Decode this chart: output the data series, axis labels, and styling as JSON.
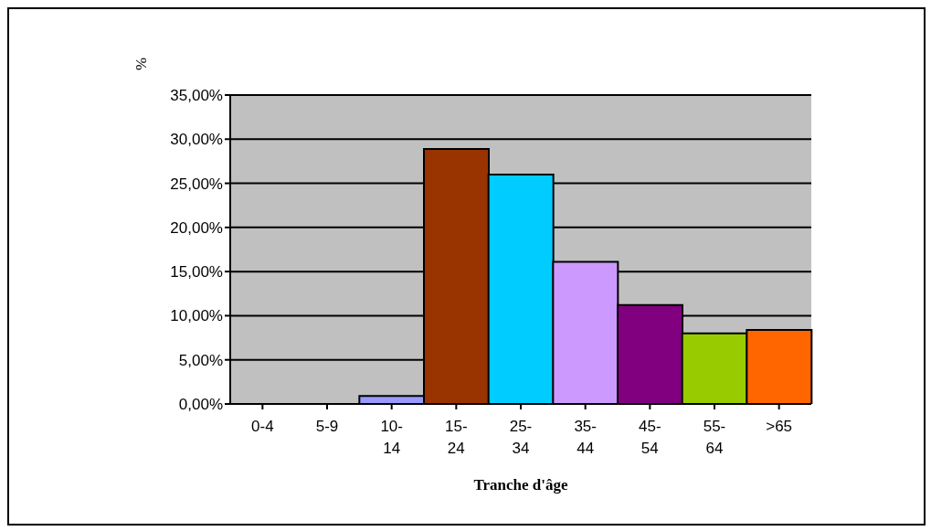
{
  "chart_data": {
    "type": "bar",
    "xlabel": "Tranche d'âge",
    "ylabel": "%",
    "categories": [
      "0-4",
      "5-9",
      "10-14",
      "15-24",
      "25-34",
      "35-44",
      "45-54",
      "55-64",
      ">65"
    ],
    "values": [
      null,
      null,
      0.9,
      28.9,
      26.0,
      16.1,
      11.2,
      8.0,
      8.4
    ],
    "colors": [
      "#9999ff",
      "#9999ff",
      "#9999ff",
      "#993300",
      "#00ccff",
      "#cc99ff",
      "#800080",
      "#99cc00",
      "#ff6600"
    ],
    "ylim": [
      0,
      35
    ],
    "yticks": [
      {
        "value": 0,
        "label": "0,00%"
      },
      {
        "value": 5,
        "label": "5,00%"
      },
      {
        "value": 10,
        "label": "10,00%"
      },
      {
        "value": 15,
        "label": "15,00%"
      },
      {
        "value": 20,
        "label": "20,00%"
      },
      {
        "value": 25,
        "label": "25,00%"
      },
      {
        "value": 30,
        "label": "30,00%"
      },
      {
        "value": 35,
        "label": "35,00%"
      }
    ],
    "grid": "y",
    "legend": false
  }
}
